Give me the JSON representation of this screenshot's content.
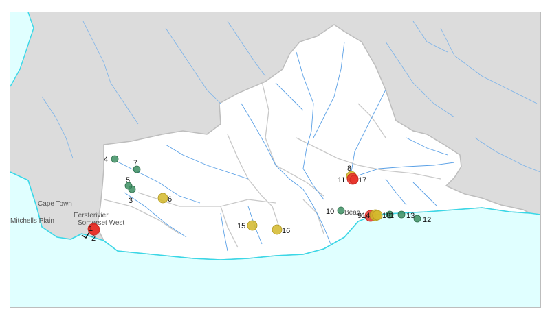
{
  "colors": {
    "sea": "#e0ffff",
    "land_outside": "#dcdcdc",
    "study_area": "#ffffff",
    "rivers": "#5aa0e6",
    "boundaries": "#bdbdbd",
    "coast": "#38d8e8",
    "green_marker": "#3d8f63",
    "yellow_marker": "#d4b82a",
    "red_marker": "#e8322a"
  },
  "places": [
    {
      "id": "cape-town",
      "name": "Cape Town"
    },
    {
      "id": "mitchells-plain",
      "name": "Mitchells Plain"
    },
    {
      "id": "eersterivier",
      "name": "Eersterivier"
    },
    {
      "id": "somerset-west",
      "name": "Somerset West"
    },
    {
      "id": "beacon",
      "name": "Beac"
    }
  ],
  "points": [
    {
      "label": "1",
      "category": "red"
    },
    {
      "label": "2",
      "category": "red"
    },
    {
      "label": "3",
      "category": "green"
    },
    {
      "label": "4",
      "category": "green"
    },
    {
      "label": "5",
      "category": "green"
    },
    {
      "label": "6",
      "category": "yellow"
    },
    {
      "label": "7",
      "category": "green"
    },
    {
      "label": "8",
      "category": "yellow"
    },
    {
      "label": "9",
      "category": "red"
    },
    {
      "label": "10",
      "category": "green"
    },
    {
      "label": "11",
      "category": "red"
    },
    {
      "label": "12",
      "category": "green"
    },
    {
      "label": "13",
      "category": "green"
    },
    {
      "label": "14",
      "category": "yellow"
    },
    {
      "label": "15",
      "category": "yellow"
    },
    {
      "label": "16",
      "category": "yellow"
    },
    {
      "label": "17",
      "category": "red"
    },
    {
      "label": "18",
      "category": "yellow"
    },
    {
      "label": "1",
      "category": "green"
    }
  ]
}
